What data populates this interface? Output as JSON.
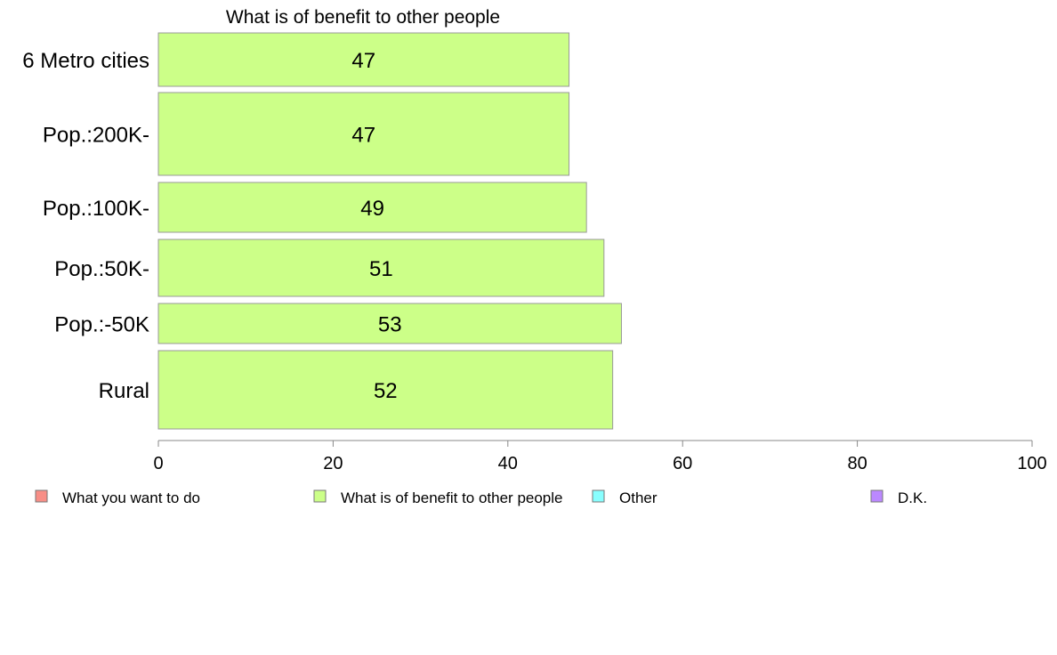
{
  "chart_data": {
    "type": "bar",
    "orientation": "horizontal",
    "title": "What is of benefit to other people",
    "categories": [
      "6 Metro cities",
      "Pop.:200K-",
      "Pop.:100K-",
      "Pop.:50K-",
      "Pop.:-50K",
      "Rural"
    ],
    "series": [
      {
        "name": "What is of benefit to other people",
        "values": [
          47,
          47,
          49,
          51,
          53,
          52
        ],
        "color": "#ccff88"
      }
    ],
    "xlim": [
      0,
      100
    ],
    "xticks": [
      0,
      20,
      40,
      60,
      80,
      100
    ],
    "grid": false,
    "legend_position": "bottom",
    "legend": [
      {
        "label": "What you want to do",
        "color": "#f88e86"
      },
      {
        "label": "What is of benefit to other people",
        "color": "#ccff88"
      },
      {
        "label": "Other",
        "color": "#88ffff"
      },
      {
        "label": "D.K.",
        "color": "#bb88ff"
      }
    ]
  }
}
